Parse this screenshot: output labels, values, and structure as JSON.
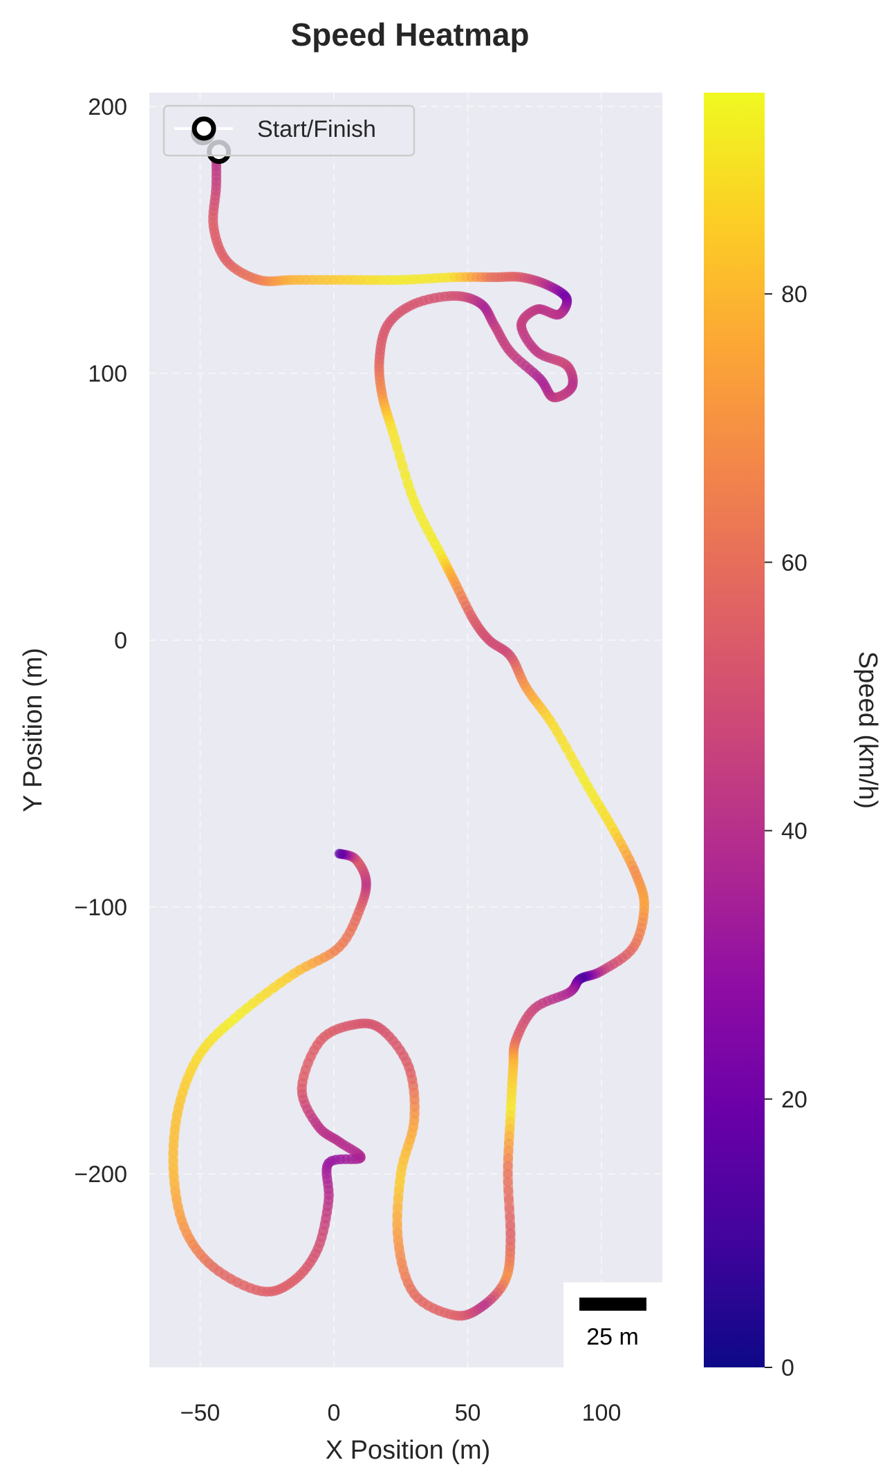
{
  "chart_data": {
    "type": "line",
    "subtype": "speed-colored trajectory (heatmap track map)",
    "title": "Speed Heatmap",
    "xlabel": "X Position (m)",
    "ylabel": "Y Position (m)",
    "xlim": [
      -69,
      123
    ],
    "ylim": [
      -272,
      205
    ],
    "x_ticks": [
      -50,
      0,
      50,
      100
    ],
    "y_ticks": [
      200,
      100,
      0,
      -100,
      -200
    ],
    "x_tick_labels": [
      "−50",
      "0",
      "50",
      "100"
    ],
    "y_tick_labels": [
      "200",
      "100",
      "0",
      "−100",
      "−200"
    ],
    "grid": true,
    "aspect": "equal",
    "background": "#eaeaf2",
    "legend": {
      "position": "upper left",
      "entries": [
        {
          "label": "Start/Finish",
          "marker": "open-circle",
          "color": "#000000"
        }
      ]
    },
    "colorbar": {
      "label": "Speed (km/h)",
      "colormap": "plasma",
      "range": [
        0,
        95
      ],
      "ticks": [
        0,
        20,
        40,
        60,
        80
      ],
      "tick_labels": [
        "0",
        "20",
        "40",
        "60",
        "80"
      ]
    },
    "scale_bar": {
      "length_m": 25,
      "label": "25 m",
      "position": "lower right"
    },
    "start_finish_markers": [
      [
        -49,
        190
      ],
      [
        -43,
        183
      ]
    ],
    "track_points": [
      {
        "x": -44,
        "y": 183,
        "speed": 38
      },
      {
        "x": -44,
        "y": 170,
        "speed": 45
      },
      {
        "x": -45,
        "y": 155,
        "speed": 55
      },
      {
        "x": -40,
        "y": 142,
        "speed": 55
      },
      {
        "x": -28,
        "y": 135,
        "speed": 62
      },
      {
        "x": -15,
        "y": 135,
        "speed": 78
      },
      {
        "x": 5,
        "y": 135,
        "speed": 85
      },
      {
        "x": 25,
        "y": 135,
        "speed": 92
      },
      {
        "x": 45,
        "y": 136,
        "speed": 90
      },
      {
        "x": 60,
        "y": 136,
        "speed": 60
      },
      {
        "x": 70,
        "y": 136,
        "speed": 55
      },
      {
        "x": 80,
        "y": 133,
        "speed": 40
      },
      {
        "x": 87,
        "y": 128,
        "speed": 20
      },
      {
        "x": 84,
        "y": 122,
        "speed": 40
      },
      {
        "x": 76,
        "y": 124,
        "speed": 42
      },
      {
        "x": 70,
        "y": 118,
        "speed": 45
      },
      {
        "x": 76,
        "y": 108,
        "speed": 42
      },
      {
        "x": 87,
        "y": 103,
        "speed": 48
      },
      {
        "x": 89,
        "y": 95,
        "speed": 40
      },
      {
        "x": 82,
        "y": 91,
        "speed": 45
      },
      {
        "x": 77,
        "y": 98,
        "speed": 35
      },
      {
        "x": 66,
        "y": 108,
        "speed": 45
      },
      {
        "x": 60,
        "y": 118,
        "speed": 45
      },
      {
        "x": 55,
        "y": 126,
        "speed": 35
      },
      {
        "x": 45,
        "y": 129,
        "speed": 50
      },
      {
        "x": 30,
        "y": 126,
        "speed": 52
      },
      {
        "x": 20,
        "y": 118,
        "speed": 52
      },
      {
        "x": 17,
        "y": 105,
        "speed": 55
      },
      {
        "x": 18,
        "y": 92,
        "speed": 68
      },
      {
        "x": 22,
        "y": 78,
        "speed": 90
      },
      {
        "x": 30,
        "y": 52,
        "speed": 92
      },
      {
        "x": 40,
        "y": 32,
        "speed": 92
      },
      {
        "x": 45,
        "y": 22,
        "speed": 75
      },
      {
        "x": 52,
        "y": 8,
        "speed": 55
      },
      {
        "x": 58,
        "y": 0,
        "speed": 50
      },
      {
        "x": 66,
        "y": -6,
        "speed": 48
      },
      {
        "x": 72,
        "y": -18,
        "speed": 70
      },
      {
        "x": 82,
        "y": -32,
        "speed": 88
      },
      {
        "x": 95,
        "y": -55,
        "speed": 92
      },
      {
        "x": 105,
        "y": -72,
        "speed": 88
      },
      {
        "x": 113,
        "y": -88,
        "speed": 68
      },
      {
        "x": 116,
        "y": -100,
        "speed": 75
      },
      {
        "x": 112,
        "y": -115,
        "speed": 62
      },
      {
        "x": 100,
        "y": -124,
        "speed": 45
      },
      {
        "x": 92,
        "y": -127,
        "speed": 10
      },
      {
        "x": 88,
        "y": -132,
        "speed": 35
      },
      {
        "x": 75,
        "y": -138,
        "speed": 45
      },
      {
        "x": 68,
        "y": -150,
        "speed": 55
      },
      {
        "x": 67,
        "y": -160,
        "speed": 80
      },
      {
        "x": 66,
        "y": -178,
        "speed": 92
      },
      {
        "x": 65,
        "y": -200,
        "speed": 62
      },
      {
        "x": 66,
        "y": -225,
        "speed": 55
      },
      {
        "x": 64,
        "y": -240,
        "speed": 70
      },
      {
        "x": 55,
        "y": -250,
        "speed": 40
      },
      {
        "x": 45,
        "y": -253,
        "speed": 55
      },
      {
        "x": 30,
        "y": -245,
        "speed": 58
      },
      {
        "x": 24,
        "y": -225,
        "speed": 70
      },
      {
        "x": 25,
        "y": -200,
        "speed": 85
      },
      {
        "x": 30,
        "y": -180,
        "speed": 75
      },
      {
        "x": 28,
        "y": -160,
        "speed": 55
      },
      {
        "x": 18,
        "y": -146,
        "speed": 52
      },
      {
        "x": 8,
        "y": -144,
        "speed": 52
      },
      {
        "x": -5,
        "y": -150,
        "speed": 55
      },
      {
        "x": -12,
        "y": -168,
        "speed": 55
      },
      {
        "x": -6,
        "y": -182,
        "speed": 42
      },
      {
        "x": 2,
        "y": -188,
        "speed": 40
      },
      {
        "x": 10,
        "y": -194,
        "speed": 38
      },
      {
        "x": -2,
        "y": -196,
        "speed": 30
      },
      {
        "x": -2,
        "y": -210,
        "speed": 40
      },
      {
        "x": -6,
        "y": -228,
        "speed": 50
      },
      {
        "x": -15,
        "y": -240,
        "speed": 55
      },
      {
        "x": -27,
        "y": -244,
        "speed": 55
      },
      {
        "x": -45,
        "y": -235,
        "speed": 58
      },
      {
        "x": -56,
        "y": -220,
        "speed": 70
      },
      {
        "x": -60,
        "y": -198,
        "speed": 80
      },
      {
        "x": -58,
        "y": -175,
        "speed": 82
      },
      {
        "x": -50,
        "y": -155,
        "speed": 88
      },
      {
        "x": -35,
        "y": -140,
        "speed": 93
      },
      {
        "x": -15,
        "y": -125,
        "speed": 85
      },
      {
        "x": 2,
        "y": -115,
        "speed": 65
      },
      {
        "x": 10,
        "y": -100,
        "speed": 58
      },
      {
        "x": 12,
        "y": -90,
        "speed": 42
      },
      {
        "x": 8,
        "y": -82,
        "speed": 55
      },
      {
        "x": 2,
        "y": -80,
        "speed": 15
      }
    ]
  }
}
